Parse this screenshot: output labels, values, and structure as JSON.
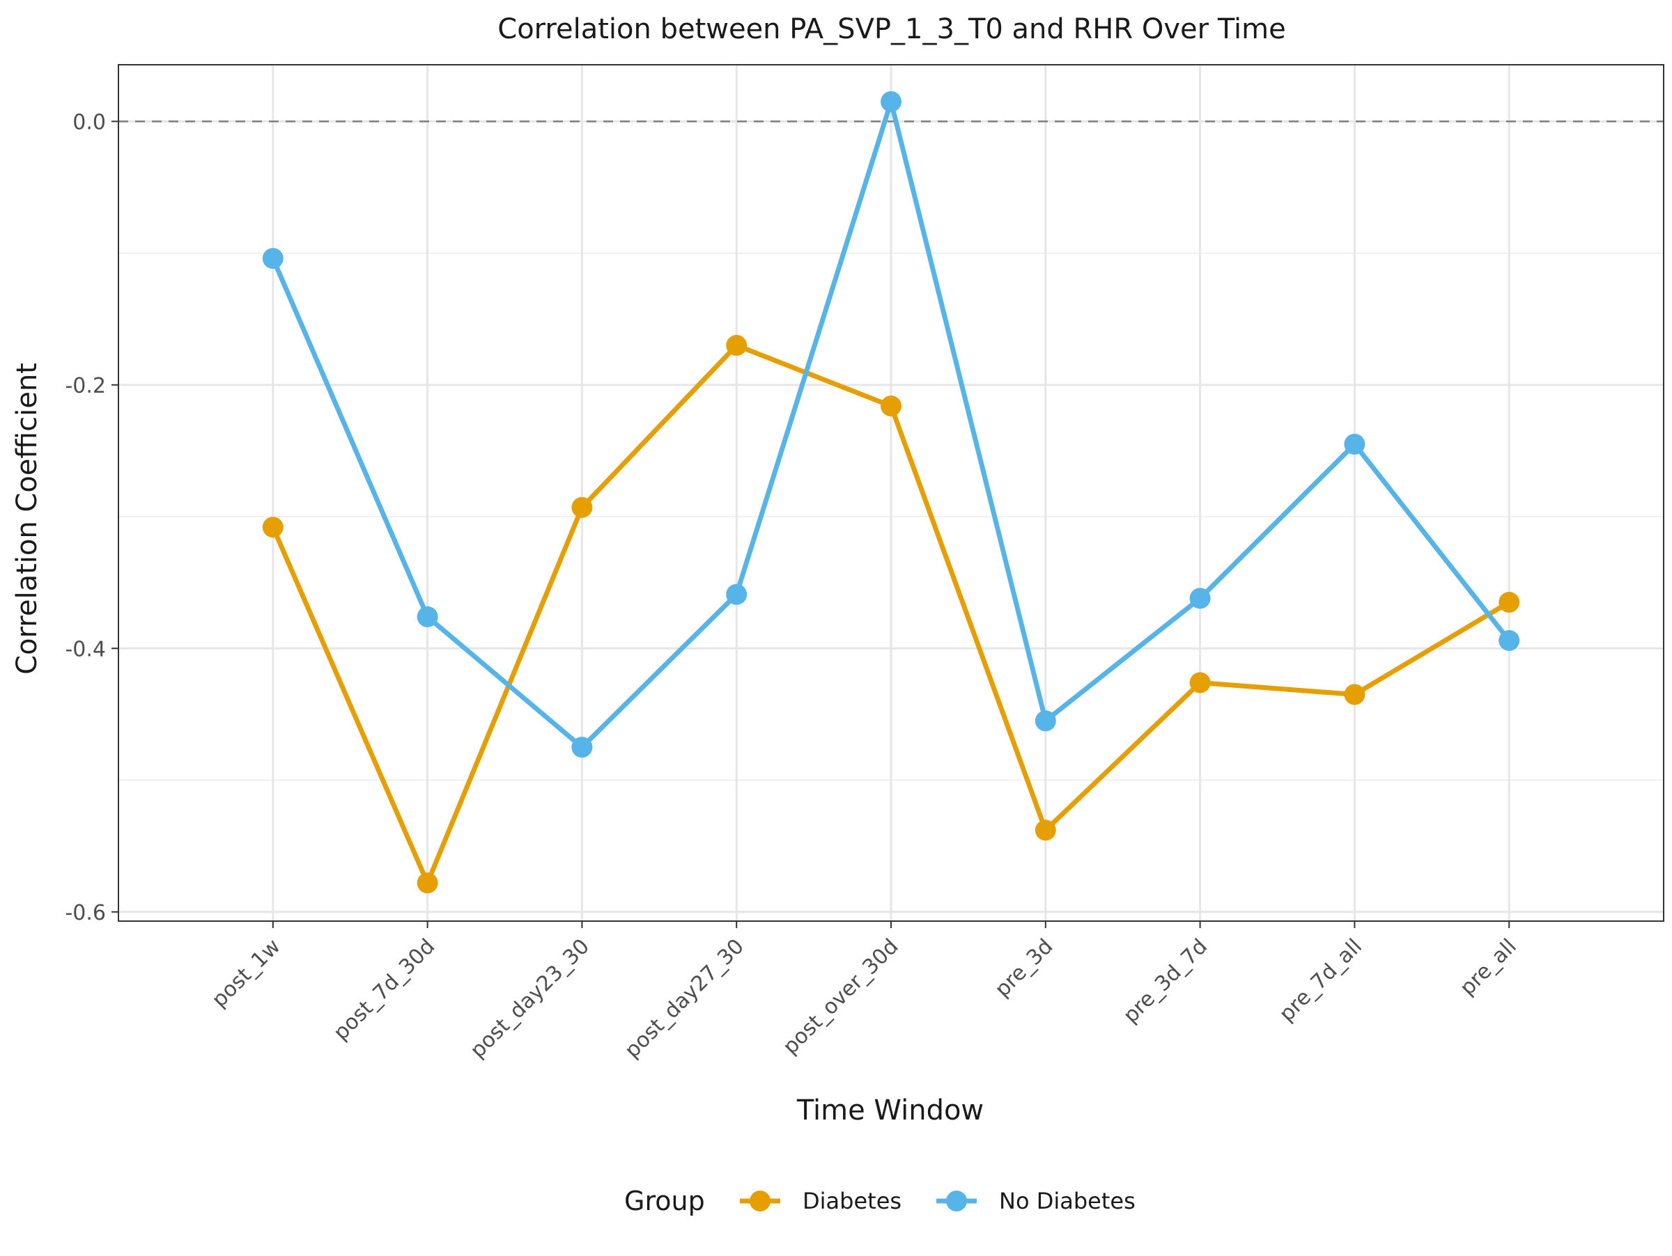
{
  "chart_data": {
    "type": "line",
    "title": "Correlation between PA_SVP_1_3_T0 and RHR Over Time",
    "xlabel": "Time Window",
    "ylabel": "Correlation Coefficient",
    "categories": [
      "post_1w",
      "post_7d_30d",
      "post_day23_30",
      "post_day27_30",
      "post_over_30d",
      "pre_3d",
      "pre_3d_7d",
      "pre_7d_all",
      "pre_all"
    ],
    "ylim": [
      -0.607,
      0.043
    ],
    "yticks": [
      0.0,
      -0.2,
      -0.4,
      -0.6
    ],
    "ytick_labels": [
      "0.0",
      "-0.2",
      "-0.4",
      "-0.6"
    ],
    "reference_line": 0.0,
    "grid": true,
    "legend": {
      "title": "Group",
      "placement": "bottom"
    },
    "series": [
      {
        "name": "Diabetes",
        "color": "#E69F00",
        "values": [
          -0.308,
          -0.578,
          -0.293,
          -0.17,
          -0.216,
          -0.538,
          -0.426,
          -0.435,
          -0.365
        ]
      },
      {
        "name": "No Diabetes",
        "color": "#56B4E9",
        "values": [
          -0.104,
          -0.376,
          -0.475,
          -0.359,
          0.015,
          -0.455,
          -0.362,
          -0.245,
          -0.394
        ]
      }
    ]
  }
}
